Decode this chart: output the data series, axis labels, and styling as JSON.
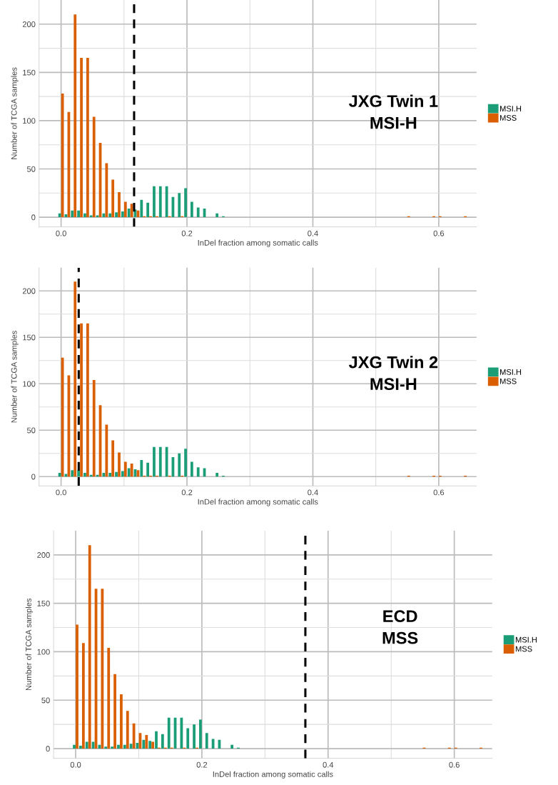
{
  "chart_data": [
    {
      "type": "bar",
      "x": [
        0,
        0.01,
        0.02,
        0.03,
        0.04,
        0.05,
        0.06,
        0.07,
        0.08,
        0.09,
        0.1,
        0.11,
        0.12,
        0.13,
        0.14,
        0.15,
        0.16,
        0.17,
        0.18,
        0.19,
        0.2,
        0.21,
        0.22,
        0.23,
        0.24,
        0.25,
        0.26,
        0.27,
        0.28,
        0.29,
        0.3,
        0.31,
        0.32,
        0.33,
        0.34,
        0.35,
        0.36,
        0.37,
        0.38,
        0.39,
        0.4,
        0.41,
        0.42,
        0.43,
        0.44,
        0.45,
        0.46,
        0.47,
        0.48,
        0.49,
        0.5,
        0.51,
        0.52,
        0.53,
        0.54,
        0.55,
        0.56,
        0.57,
        0.58,
        0.59,
        0.6,
        0.61,
        0.62,
        0.63,
        0.64
      ],
      "series": [
        {
          "name": "MSI.H",
          "color": "#1b9e77",
          "values": [
            4,
            3,
            7,
            7,
            4,
            2,
            2,
            4,
            4,
            5,
            6,
            9,
            8,
            18,
            15,
            32,
            32,
            32,
            21,
            25,
            30,
            16,
            10,
            9,
            0,
            4,
            1,
            0,
            0,
            0,
            0,
            0,
            0,
            0,
            0,
            0,
            0,
            0,
            0,
            0,
            0,
            0,
            0,
            0,
            0,
            0,
            0,
            0,
            0,
            0,
            0,
            0,
            0,
            0,
            0,
            0,
            0,
            0,
            0,
            0,
            0,
            0,
            0,
            0,
            0
          ]
        },
        {
          "name": "MSS",
          "color": "#d95f02",
          "values": [
            128,
            109,
            210,
            165,
            165,
            104,
            77,
            56,
            39,
            26,
            16,
            14,
            7,
            1,
            1,
            1,
            0,
            1,
            0,
            1,
            0,
            0,
            0,
            0,
            0,
            0,
            0,
            0,
            0,
            0,
            0,
            0,
            0,
            0,
            0,
            0,
            0,
            0,
            0,
            0,
            0,
            0,
            0,
            0,
            0,
            0,
            0,
            0,
            0,
            0,
            0,
            0,
            0,
            0,
            0,
            1,
            0,
            0,
            0,
            1,
            1,
            0,
            0,
            0,
            1
          ]
        }
      ],
      "xlabel": "InDel fraction among somatic calls",
      "ylabel": "Number of TCGA samples",
      "xlim": [
        -0.035,
        0.66
      ],
      "ylim": [
        -10,
        225
      ],
      "xticks": [
        {
          "value": 0,
          "label": "0.0"
        },
        {
          "value": 0.1,
          "label": null
        },
        {
          "value": 0.2,
          "label": "0.2"
        },
        {
          "value": 0.3,
          "label": null
        },
        {
          "value": 0.4,
          "label": "0.4"
        },
        {
          "value": 0.5,
          "label": null
        },
        {
          "value": 0.6,
          "label": "0.6"
        }
      ],
      "yticks": [
        0,
        {
          "value": 25,
          "label": null
        },
        50,
        {
          "value": 75,
          "label": null
        },
        100,
        {
          "value": 125,
          "label": null
        },
        150,
        {
          "value": 175,
          "label": null
        },
        200
      ],
      "grid": true,
      "legend": "right",
      "ref_lines": [
        {
          "axis": "x",
          "value": 0.116,
          "color": "#000000",
          "line_style": "dashed"
        }
      ],
      "annotations": [
        "JXG Twin 1\nMSI-H"
      ]
    },
    {
      "type": "bar",
      "x": [
        0,
        0.01,
        0.02,
        0.03,
        0.04,
        0.05,
        0.06,
        0.07,
        0.08,
        0.09,
        0.1,
        0.11,
        0.12,
        0.13,
        0.14,
        0.15,
        0.16,
        0.17,
        0.18,
        0.19,
        0.2,
        0.21,
        0.22,
        0.23,
        0.24,
        0.25,
        0.26,
        0.27,
        0.28,
        0.29,
        0.3,
        0.31,
        0.32,
        0.33,
        0.34,
        0.35,
        0.36,
        0.37,
        0.38,
        0.39,
        0.4,
        0.41,
        0.42,
        0.43,
        0.44,
        0.45,
        0.46,
        0.47,
        0.48,
        0.49,
        0.5,
        0.51,
        0.52,
        0.53,
        0.54,
        0.55,
        0.56,
        0.57,
        0.58,
        0.59,
        0.6,
        0.61,
        0.62,
        0.63,
        0.64
      ],
      "series": [
        {
          "name": "MSI.H",
          "color": "#1b9e77",
          "values": [
            4,
            3,
            7,
            7,
            4,
            2,
            2,
            4,
            4,
            5,
            6,
            9,
            8,
            18,
            15,
            32,
            32,
            32,
            21,
            25,
            30,
            16,
            10,
            9,
            0,
            4,
            1,
            0,
            0,
            0,
            0,
            0,
            0,
            0,
            0,
            0,
            0,
            0,
            0,
            0,
            0,
            0,
            0,
            0,
            0,
            0,
            0,
            0,
            0,
            0,
            0,
            0,
            0,
            0,
            0,
            0,
            0,
            0,
            0,
            0,
            0,
            0,
            0,
            0,
            0
          ]
        },
        {
          "name": "MSS",
          "color": "#d95f02",
          "values": [
            128,
            109,
            210,
            165,
            165,
            104,
            77,
            56,
            39,
            26,
            16,
            14,
            7,
            1,
            1,
            1,
            0,
            1,
            0,
            1,
            0,
            0,
            0,
            0,
            0,
            0,
            0,
            0,
            0,
            0,
            0,
            0,
            0,
            0,
            0,
            0,
            0,
            0,
            0,
            0,
            0,
            0,
            0,
            0,
            0,
            0,
            0,
            0,
            0,
            0,
            0,
            0,
            0,
            0,
            0,
            1,
            0,
            0,
            0,
            1,
            1,
            0,
            0,
            0,
            1
          ]
        }
      ],
      "xlabel": "InDel fraction among somatic calls",
      "ylabel": "Number of TCGA samples",
      "xlim": [
        -0.035,
        0.66
      ],
      "ylim": [
        -10,
        225
      ],
      "xticks": [
        {
          "value": 0,
          "label": "0.0"
        },
        {
          "value": 0.1,
          "label": null
        },
        {
          "value": 0.2,
          "label": "0.2"
        },
        {
          "value": 0.3,
          "label": null
        },
        {
          "value": 0.4,
          "label": "0.4"
        },
        {
          "value": 0.5,
          "label": null
        },
        {
          "value": 0.6,
          "label": "0.6"
        }
      ],
      "yticks": [
        0,
        {
          "value": 25,
          "label": null
        },
        50,
        {
          "value": 75,
          "label": null
        },
        100,
        {
          "value": 125,
          "label": null
        },
        150,
        {
          "value": 175,
          "label": null
        },
        200
      ],
      "grid": true,
      "legend": "right",
      "ref_lines": [
        {
          "axis": "x",
          "value": 0.028,
          "color": "#000000",
          "line_style": "dashed"
        }
      ],
      "annotations": [
        "JXG Twin 2\nMSI-H"
      ]
    },
    {
      "type": "bar",
      "x": [
        0,
        0.01,
        0.02,
        0.03,
        0.04,
        0.05,
        0.06,
        0.07,
        0.08,
        0.09,
        0.1,
        0.11,
        0.12,
        0.13,
        0.14,
        0.15,
        0.16,
        0.17,
        0.18,
        0.19,
        0.2,
        0.21,
        0.22,
        0.23,
        0.24,
        0.25,
        0.26,
        0.27,
        0.28,
        0.29,
        0.3,
        0.31,
        0.32,
        0.33,
        0.34,
        0.35,
        0.36,
        0.37,
        0.38,
        0.39,
        0.4,
        0.41,
        0.42,
        0.43,
        0.44,
        0.45,
        0.46,
        0.47,
        0.48,
        0.49,
        0.5,
        0.51,
        0.52,
        0.53,
        0.54,
        0.55,
        0.56,
        0.57,
        0.58,
        0.59,
        0.6,
        0.61,
        0.62,
        0.63,
        0.64
      ],
      "series": [
        {
          "name": "MSI.H",
          "color": "#1b9e77",
          "values": [
            4,
            3,
            7,
            7,
            4,
            2,
            2,
            4,
            4,
            5,
            6,
            9,
            8,
            18,
            15,
            32,
            32,
            32,
            21,
            25,
            30,
            16,
            10,
            9,
            0,
            4,
            1,
            0,
            0,
            0,
            0,
            0,
            0,
            0,
            0,
            0,
            0,
            0,
            0,
            0,
            0,
            0,
            0,
            0,
            0,
            0,
            0,
            0,
            0,
            0,
            0,
            0,
            0,
            0,
            0,
            0,
            0,
            0,
            0,
            0,
            0,
            0,
            0,
            0,
            0
          ]
        },
        {
          "name": "MSS",
          "color": "#d95f02",
          "values": [
            128,
            109,
            210,
            165,
            165,
            104,
            77,
            56,
            39,
            26,
            16,
            14,
            7,
            1,
            1,
            1,
            0,
            1,
            0,
            1,
            0,
            0,
            0,
            0,
            0,
            0,
            0,
            0,
            0,
            0,
            0,
            0,
            0,
            0,
            0,
            0,
            0,
            0,
            0,
            0,
            0,
            0,
            0,
            0,
            0,
            0,
            0,
            0,
            0,
            0,
            0,
            0,
            0,
            0,
            0,
            1,
            0,
            0,
            0,
            1,
            1,
            0,
            0,
            0,
            1
          ]
        }
      ],
      "xlabel": "InDel fraction among somatic calls",
      "ylabel": "Number of TCGA samples",
      "xlim": [
        -0.035,
        0.66
      ],
      "ylim": [
        -10,
        225
      ],
      "xticks": [
        {
          "value": 0,
          "label": "0.0"
        },
        {
          "value": 0.1,
          "label": null
        },
        {
          "value": 0.2,
          "label": "0.2"
        },
        {
          "value": 0.3,
          "label": null
        },
        {
          "value": 0.4,
          "label": "0.4"
        },
        {
          "value": 0.5,
          "label": null
        },
        {
          "value": 0.6,
          "label": "0.6"
        }
      ],
      "yticks": [
        0,
        {
          "value": 25,
          "label": null
        },
        50,
        {
          "value": 75,
          "label": null
        },
        100,
        {
          "value": 125,
          "label": null
        },
        150,
        {
          "value": 175,
          "label": null
        },
        200
      ],
      "grid": true,
      "legend": "right",
      "ref_lines": [
        {
          "axis": "x",
          "value": 0.364,
          "color": "#000000",
          "line_style": "dashed"
        }
      ],
      "annotations": [
        "ECD\nMSS"
      ]
    }
  ]
}
